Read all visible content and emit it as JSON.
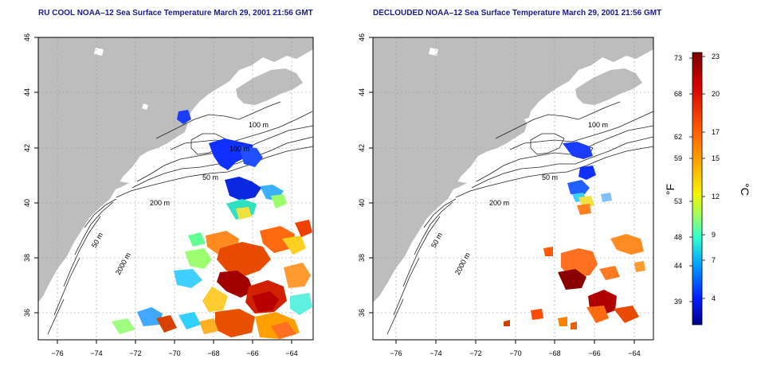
{
  "titles": {
    "left": "RU COOL NOAA–12 Sea Surface Temperature March 29, 2001 21:56 GMT",
    "right": "DECLOUDED NOAA–12 Sea Surface Temperature March 29, 2001 21:56 GMT"
  },
  "axes": {
    "x_ticks": [
      "−76",
      "−74",
      "−72",
      "−70",
      "−68",
      "−66",
      "−64"
    ],
    "y_ticks": [
      "36",
      "38",
      "40",
      "42",
      "44",
      "46"
    ],
    "x_range": [
      -77,
      -63
    ],
    "y_range": [
      35,
      46
    ]
  },
  "contour_labels": {
    "c100": "100 m",
    "c200": "200 m",
    "c50": "50 m",
    "c2000": "2000 m"
  },
  "colorbar": {
    "f_label": "°F",
    "c_label": "°C",
    "f_ticks": [
      "73",
      "68",
      "62",
      "59",
      "53",
      "48",
      "44",
      "39"
    ],
    "c_ticks": [
      "23",
      "20",
      "17",
      "15",
      "12",
      "9",
      "7",
      "4"
    ],
    "colors": [
      "#8b0000",
      "#ff0000",
      "#ff8c00",
      "#ffff00",
      "#7fff7f",
      "#00bfff",
      "#0000ff",
      "#00008b"
    ]
  }
}
